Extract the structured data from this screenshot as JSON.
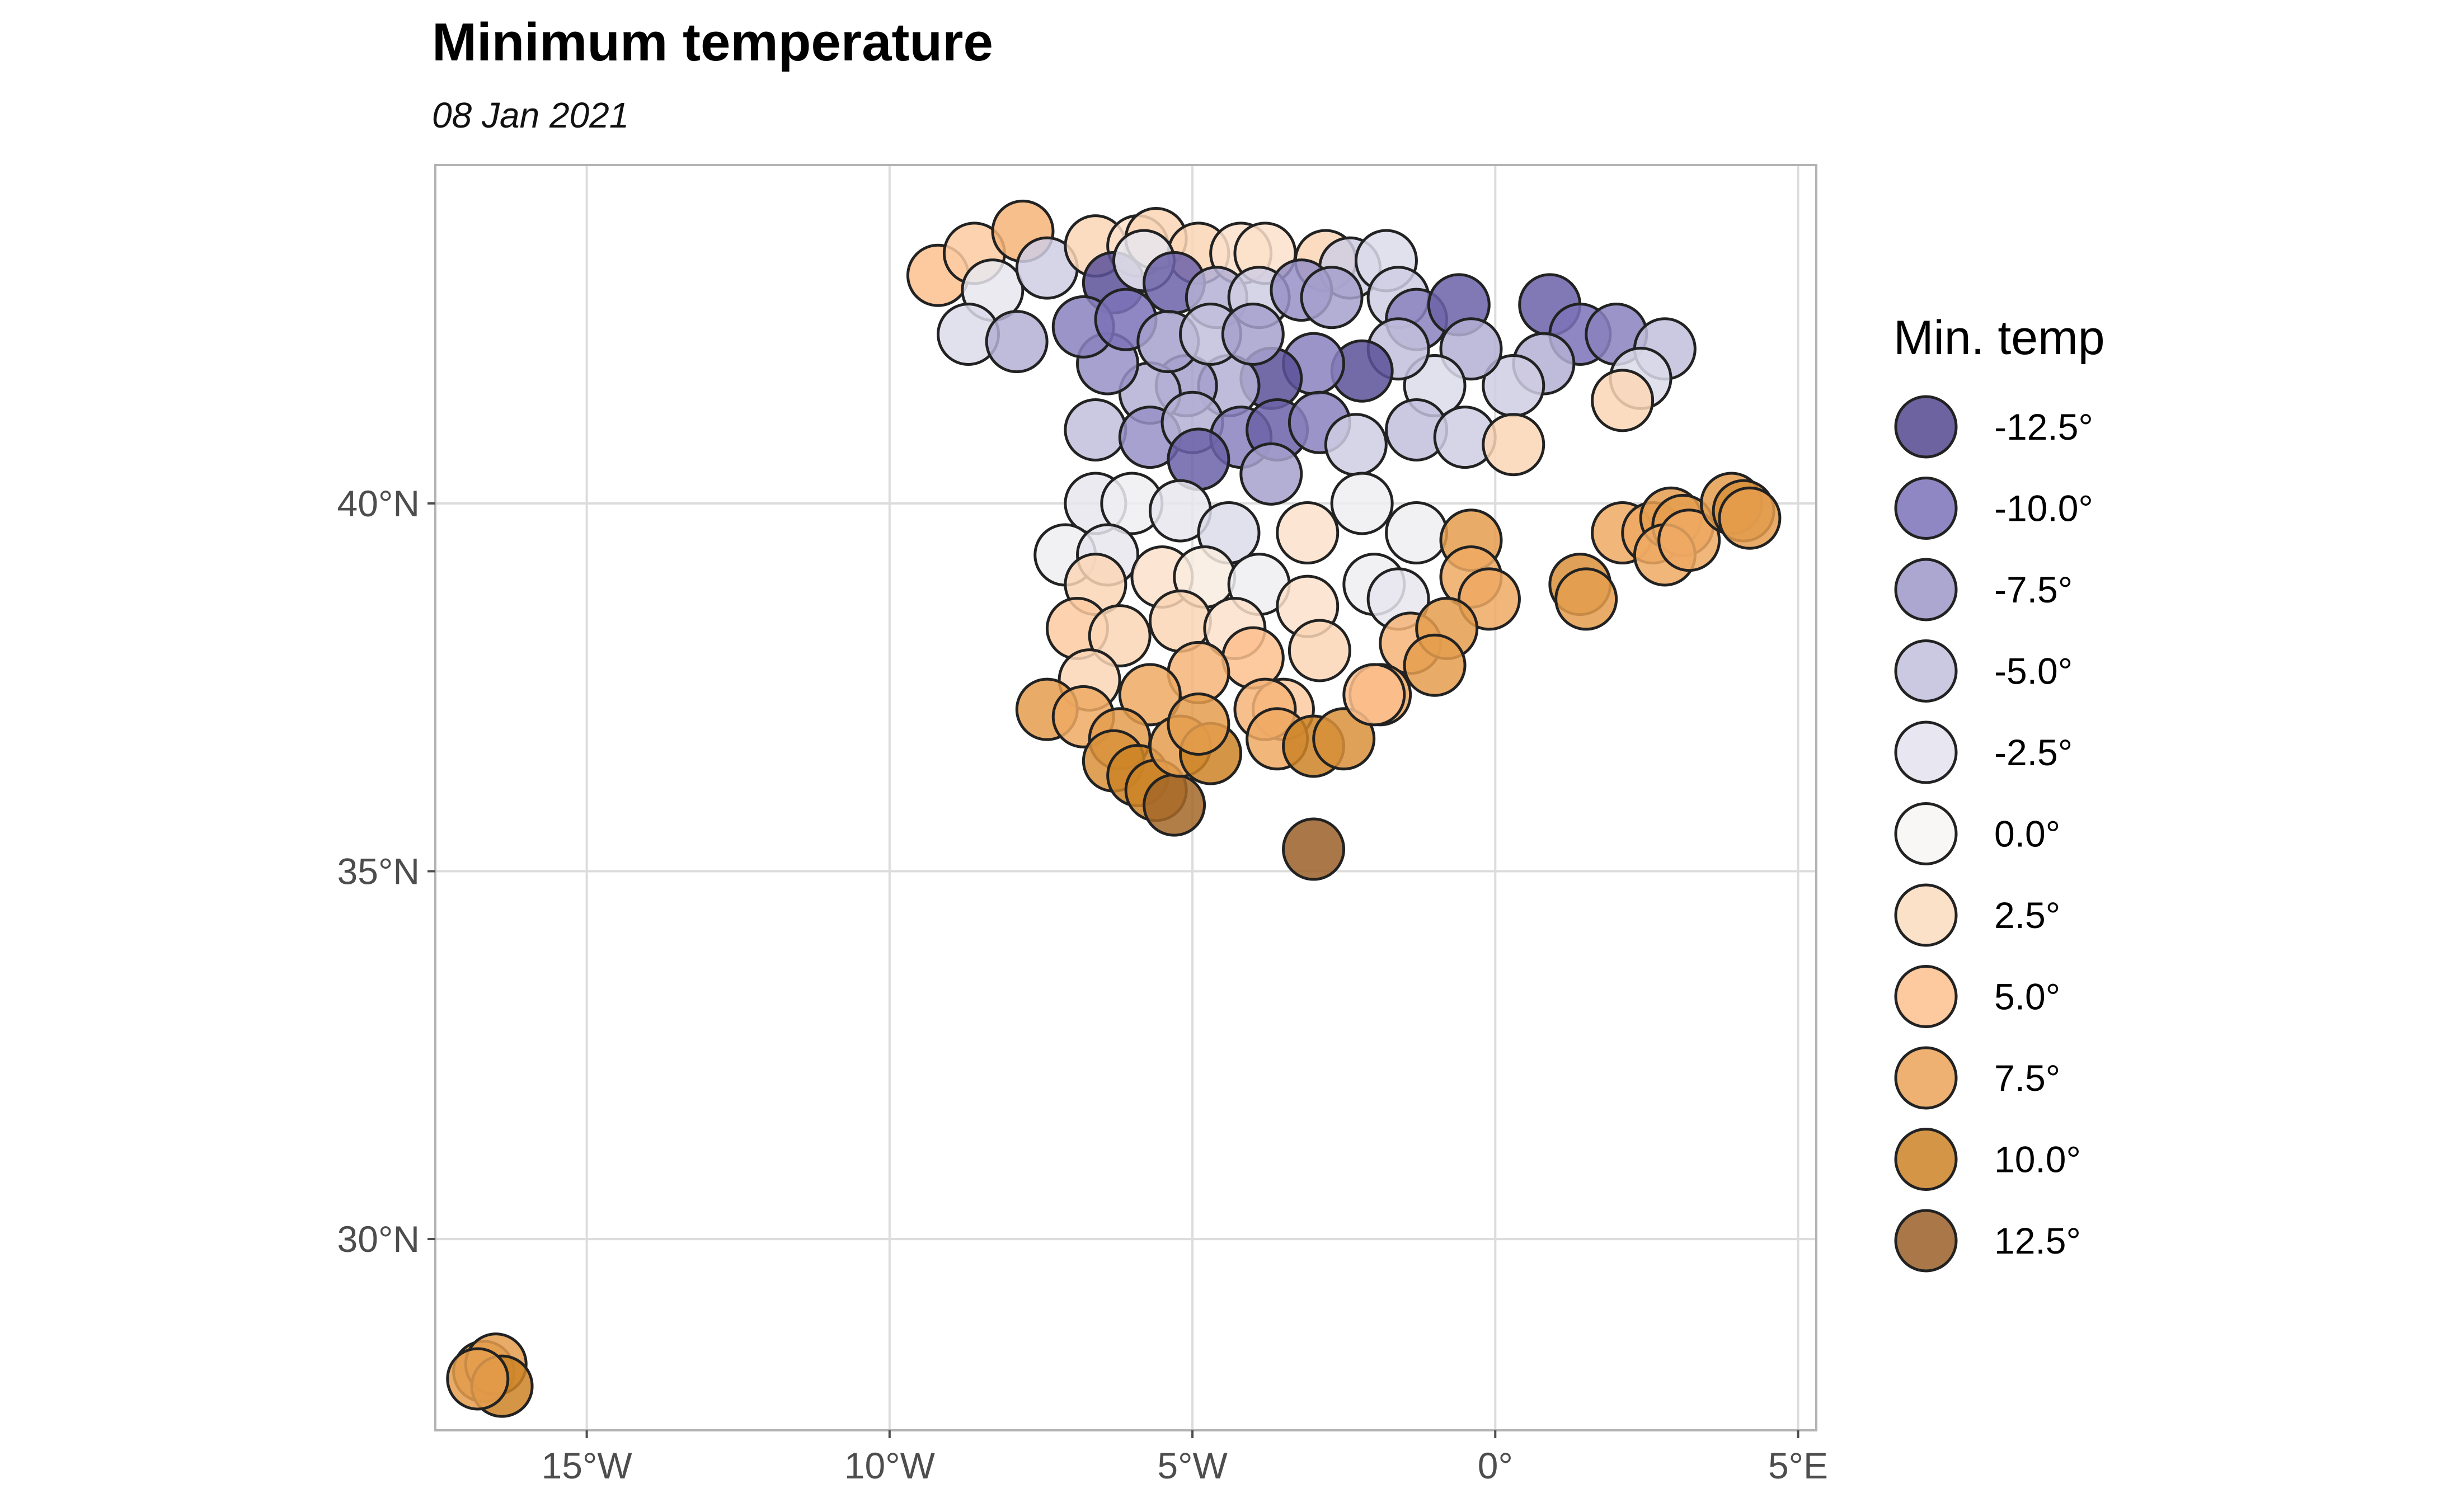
{
  "chart_data": {
    "type": "scatter",
    "title": "Minimum temperature",
    "subtitle": "08 Jan 2021",
    "xlim": [
      -17.5,
      5.3
    ],
    "ylim": [
      27.4,
      44.6
    ],
    "x_ticks": [
      {
        "value": -15,
        "label": "15°W"
      },
      {
        "value": -10,
        "label": "10°W"
      },
      {
        "value": -5,
        "label": "5°W"
      },
      {
        "value": 0,
        "label": "0°"
      },
      {
        "value": 5,
        "label": "5°E"
      }
    ],
    "y_ticks": [
      {
        "value": 30,
        "label": "30°N"
      },
      {
        "value": 35,
        "label": "35°N"
      },
      {
        "value": 40,
        "label": "40°N"
      }
    ],
    "grid": true,
    "legend": {
      "title": "Min. temp",
      "placement": "right",
      "entries": [
        {
          "label": "-12.5°",
          "value": -12.5,
          "color": "#534891"
        },
        {
          "label": "-10.0°",
          "value": -10.0,
          "color": "#7b72b8"
        },
        {
          "label": "-7.5°",
          "value": -7.5,
          "color": "#9e98c8"
        },
        {
          "label": "-5.0°",
          "value": -5.0,
          "color": "#c2bfdc"
        },
        {
          "label": "-2.5°",
          "value": -2.5,
          "color": "#e3e2ee"
        },
        {
          "label": "0.0°",
          "value": 0.0,
          "color": "#f7f6f4"
        },
        {
          "label": "2.5°",
          "value": 2.5,
          "color": "#fcdcc0"
        },
        {
          "label": "5.0°",
          "value": 5.0,
          "color": "#fdbf8d"
        },
        {
          "label": "7.5°",
          "value": 7.5,
          "color": "#eba358"
        },
        {
          "label": "10.0°",
          "value": 10.0,
          "color": "#cc8426"
        },
        {
          "label": "12.5°",
          "value": 12.5,
          "color": "#9b6028"
        }
      ]
    },
    "points": [
      {
        "lon": -9.2,
        "lat": 43.1,
        "temp": 5
      },
      {
        "lon": -8.6,
        "lat": 43.4,
        "temp": 4
      },
      {
        "lon": -7.8,
        "lat": 43.7,
        "temp": 6
      },
      {
        "lon": -8.3,
        "lat": 42.9,
        "temp": -2
      },
      {
        "lon": -8.7,
        "lat": 42.3,
        "temp": -3
      },
      {
        "lon": -7.9,
        "lat": 42.2,
        "temp": -6
      },
      {
        "lon": -7.4,
        "lat": 43.2,
        "temp": -4
      },
      {
        "lon": -6.6,
        "lat": 43.5,
        "temp": 3
      },
      {
        "lon": -5.9,
        "lat": 43.5,
        "temp": 2
      },
      {
        "lon": -5.6,
        "lat": 43.6,
        "temp": 3
      },
      {
        "lon": -4.9,
        "lat": 43.4,
        "temp": 3
      },
      {
        "lon": -4.2,
        "lat": 43.4,
        "temp": 2
      },
      {
        "lon": -3.8,
        "lat": 43.4,
        "temp": 2
      },
      {
        "lon": -2.8,
        "lat": 43.3,
        "temp": 3
      },
      {
        "lon": -2.4,
        "lat": 43.2,
        "temp": -4
      },
      {
        "lon": -1.8,
        "lat": 43.3,
        "temp": -3
      },
      {
        "lon": -6.3,
        "lat": 43.0,
        "temp": -12
      },
      {
        "lon": -5.8,
        "lat": 43.3,
        "temp": -2
      },
      {
        "lon": -5.3,
        "lat": 43.0,
        "temp": -11
      },
      {
        "lon": -4.6,
        "lat": 42.8,
        "temp": -6
      },
      {
        "lon": -3.9,
        "lat": 42.8,
        "temp": -4
      },
      {
        "lon": -3.2,
        "lat": 42.9,
        "temp": -8
      },
      {
        "lon": -2.7,
        "lat": 42.8,
        "temp": -7
      },
      {
        "lon": -1.6,
        "lat": 42.8,
        "temp": -4
      },
      {
        "lon": -1.3,
        "lat": 42.5,
        "temp": -9
      },
      {
        "lon": -0.6,
        "lat": 42.7,
        "temp": -11
      },
      {
        "lon": 0.9,
        "lat": 42.7,
        "temp": -11
      },
      {
        "lon": 1.4,
        "lat": 42.3,
        "temp": -10
      },
      {
        "lon": 2.0,
        "lat": 42.3,
        "temp": -9
      },
      {
        "lon": 2.8,
        "lat": 42.1,
        "temp": -5
      },
      {
        "lon": 2.4,
        "lat": 41.7,
        "temp": -3
      },
      {
        "lon": 2.1,
        "lat": 41.4,
        "temp": 3
      },
      {
        "lon": 0.8,
        "lat": 41.9,
        "temp": -6
      },
      {
        "lon": 0.3,
        "lat": 41.6,
        "temp": -4
      },
      {
        "lon": -0.4,
        "lat": 42.1,
        "temp": -6
      },
      {
        "lon": -1.0,
        "lat": 41.6,
        "temp": -3
      },
      {
        "lon": -1.6,
        "lat": 42.1,
        "temp": -5
      },
      {
        "lon": -2.2,
        "lat": 41.8,
        "temp": -12
      },
      {
        "lon": -3.0,
        "lat": 41.9,
        "temp": -9
      },
      {
        "lon": -3.7,
        "lat": 41.7,
        "temp": -12
      },
      {
        "lon": -4.4,
        "lat": 41.6,
        "temp": -6
      },
      {
        "lon": -5.1,
        "lat": 41.6,
        "temp": -7
      },
      {
        "lon": -5.7,
        "lat": 41.5,
        "temp": -6
      },
      {
        "lon": -6.4,
        "lat": 41.9,
        "temp": -8
      },
      {
        "lon": -6.8,
        "lat": 42.4,
        "temp": -9
      },
      {
        "lon": -6.1,
        "lat": 42.5,
        "temp": -10
      },
      {
        "lon": -5.4,
        "lat": 42.2,
        "temp": -7
      },
      {
        "lon": -4.7,
        "lat": 42.3,
        "temp": -5
      },
      {
        "lon": -4.0,
        "lat": 42.3,
        "temp": -7
      },
      {
        "lon": -6.6,
        "lat": 41.0,
        "temp": -5
      },
      {
        "lon": -5.7,
        "lat": 40.9,
        "temp": -8
      },
      {
        "lon": -5.0,
        "lat": 41.1,
        "temp": -6
      },
      {
        "lon": -4.2,
        "lat": 40.9,
        "temp": -9
      },
      {
        "lon": -3.6,
        "lat": 41.0,
        "temp": -11
      },
      {
        "lon": -2.9,
        "lat": 41.1,
        "temp": -9
      },
      {
        "lon": -2.3,
        "lat": 40.8,
        "temp": -4
      },
      {
        "lon": -1.3,
        "lat": 41.0,
        "temp": -5
      },
      {
        "lon": -0.5,
        "lat": 40.9,
        "temp": -4
      },
      {
        "lon": 0.3,
        "lat": 40.8,
        "temp": 3
      },
      {
        "lon": -4.9,
        "lat": 40.6,
        "temp": -11
      },
      {
        "lon": -3.7,
        "lat": 40.4,
        "temp": -7
      },
      {
        "lon": -6.6,
        "lat": 40.0,
        "temp": -2
      },
      {
        "lon": -6.0,
        "lat": 40.0,
        "temp": -1
      },
      {
        "lon": -5.2,
        "lat": 39.9,
        "temp": -2
      },
      {
        "lon": -4.4,
        "lat": 39.6,
        "temp": -3
      },
      {
        "lon": -3.1,
        "lat": 39.6,
        "temp": 2
      },
      {
        "lon": -2.2,
        "lat": 40.0,
        "temp": -1
      },
      {
        "lon": -1.3,
        "lat": 39.6,
        "temp": -1
      },
      {
        "lon": -0.4,
        "lat": 39.5,
        "temp": 8
      },
      {
        "lon": -0.4,
        "lat": 39.0,
        "temp": 7
      },
      {
        "lon": -0.1,
        "lat": 38.7,
        "temp": 7
      },
      {
        "lon": 1.4,
        "lat": 38.9,
        "temp": 9
      },
      {
        "lon": 1.5,
        "lat": 38.7,
        "temp": 8
      },
      {
        "lon": -7.1,
        "lat": 39.3,
        "temp": -1
      },
      {
        "lon": -6.4,
        "lat": 39.3,
        "temp": -2
      },
      {
        "lon": -6.6,
        "lat": 38.9,
        "temp": 3
      },
      {
        "lon": -5.5,
        "lat": 39.0,
        "temp": 2
      },
      {
        "lon": -4.8,
        "lat": 39.0,
        "temp": 1
      },
      {
        "lon": -3.9,
        "lat": 38.9,
        "temp": -1
      },
      {
        "lon": -3.1,
        "lat": 38.6,
        "temp": 2
      },
      {
        "lon": -2.0,
        "lat": 38.9,
        "temp": -1
      },
      {
        "lon": -1.6,
        "lat": 38.7,
        "temp": -2
      },
      {
        "lon": -6.9,
        "lat": 38.3,
        "temp": 4
      },
      {
        "lon": -6.2,
        "lat": 38.2,
        "temp": 3
      },
      {
        "lon": -5.2,
        "lat": 38.4,
        "temp": 3
      },
      {
        "lon": -4.3,
        "lat": 38.3,
        "temp": 2
      },
      {
        "lon": -2.9,
        "lat": 38.0,
        "temp": 3
      },
      {
        "lon": -1.4,
        "lat": 38.1,
        "temp": 6
      },
      {
        "lon": -0.8,
        "lat": 38.3,
        "temp": 8
      },
      {
        "lon": -1.0,
        "lat": 37.8,
        "temp": 8
      },
      {
        "lon": -1.9,
        "lat": 37.4,
        "temp": 7
      },
      {
        "lon": -3.5,
        "lat": 37.2,
        "temp": 4
      },
      {
        "lon": -4.0,
        "lat": 37.9,
        "temp": 5
      },
      {
        "lon": -4.9,
        "lat": 37.7,
        "temp": 6
      },
      {
        "lon": -5.7,
        "lat": 37.4,
        "temp": 7
      },
      {
        "lon": -6.7,
        "lat": 37.6,
        "temp": 3
      },
      {
        "lon": -7.4,
        "lat": 37.2,
        "temp": 8
      },
      {
        "lon": -6.8,
        "lat": 37.1,
        "temp": 7
      },
      {
        "lon": -6.2,
        "lat": 36.8,
        "temp": 8
      },
      {
        "lon": -6.3,
        "lat": 36.5,
        "temp": 9
      },
      {
        "lon": -5.9,
        "lat": 36.3,
        "temp": 10
      },
      {
        "lon": -5.6,
        "lat": 36.1,
        "temp": 10
      },
      {
        "lon": -5.3,
        "lat": 35.9,
        "temp": 12
      },
      {
        "lon": -5.2,
        "lat": 36.7,
        "temp": 8
      },
      {
        "lon": -4.7,
        "lat": 36.6,
        "temp": 10
      },
      {
        "lon": -4.9,
        "lat": 37.0,
        "temp": 8
      },
      {
        "lon": -3.8,
        "lat": 37.2,
        "temp": 6
      },
      {
        "lon": -3.6,
        "lat": 36.8,
        "temp": 7
      },
      {
        "lon": -3.0,
        "lat": 36.7,
        "temp": 10
      },
      {
        "lon": -2.5,
        "lat": 36.8,
        "temp": 9
      },
      {
        "lon": -2.0,
        "lat": 37.4,
        "temp": 5
      },
      {
        "lon": -3.0,
        "lat": 35.3,
        "temp": 12.5
      },
      {
        "lon": 2.1,
        "lat": 39.6,
        "temp": 7
      },
      {
        "lon": 2.6,
        "lat": 39.6,
        "temp": 7
      },
      {
        "lon": 2.9,
        "lat": 39.8,
        "temp": 8
      },
      {
        "lon": 3.1,
        "lat": 39.7,
        "temp": 8
      },
      {
        "lon": 2.8,
        "lat": 39.3,
        "temp": 7
      },
      {
        "lon": 3.2,
        "lat": 39.5,
        "temp": 7
      },
      {
        "lon": 3.9,
        "lat": 40.0,
        "temp": 8
      },
      {
        "lon": 4.1,
        "lat": 39.9,
        "temp": 9
      },
      {
        "lon": 4.2,
        "lat": 39.8,
        "temp": 8
      },
      {
        "lon": -16.7,
        "lat": 28.2,
        "temp": 9
      },
      {
        "lon": -16.5,
        "lat": 28.3,
        "temp": 8
      },
      {
        "lon": -16.4,
        "lat": 28.0,
        "temp": 10
      },
      {
        "lon": -16.8,
        "lat": 28.1,
        "temp": 8
      }
    ]
  }
}
